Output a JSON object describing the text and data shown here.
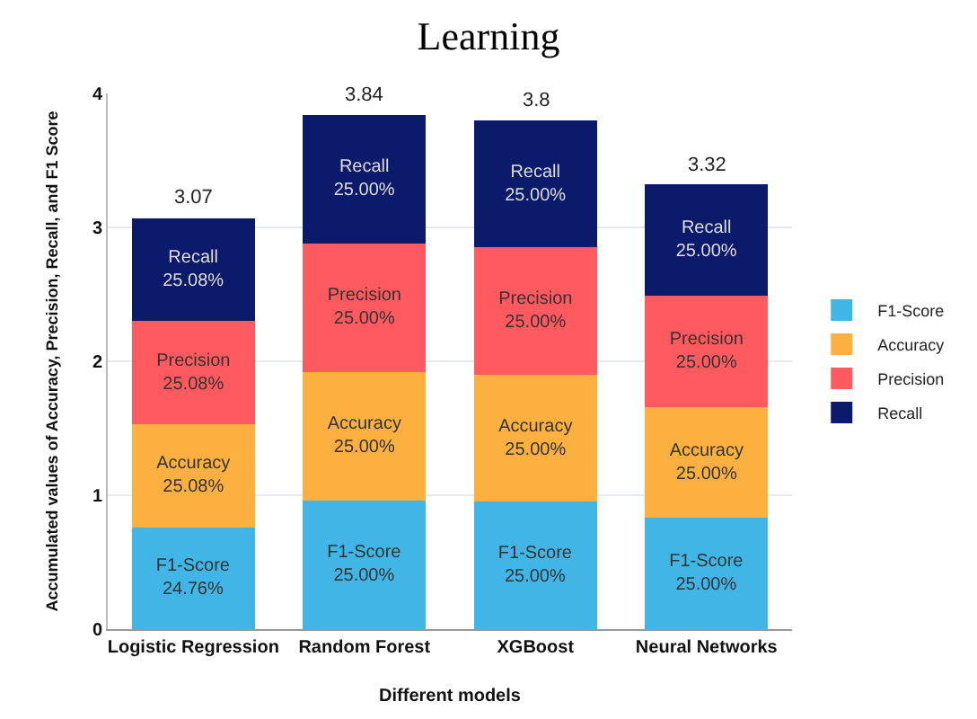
{
  "chart_data": {
    "type": "bar",
    "title": "Learning",
    "xlabel": "Different models",
    "ylabel": "Accumulated values of Accuracy, Precision, Recall, and F1 Score",
    "categories": [
      "Logistic Regression",
      "Random Forest",
      "XGBoost",
      "Neural Networks"
    ],
    "stacked": true,
    "ylim": [
      0,
      4
    ],
    "yticks": [
      0,
      1,
      2,
      3,
      4
    ],
    "grid": "y",
    "legend": "right",
    "series": [
      {
        "name": "F1-Score",
        "color": "#41b6e6",
        "values": [
          0.76,
          0.96,
          0.95,
          0.83
        ],
        "value_labels": [
          "F1-Score\n24.76%",
          "F1-Score\n25.00%",
          "F1-Score\n25.00%",
          "F1-Score\n25.00%"
        ]
      },
      {
        "name": "Accuracy",
        "color": "#fbb040",
        "values": [
          0.77,
          0.96,
          0.95,
          0.83
        ],
        "value_labels": [
          "Accuracy\n25.08%",
          "Accuracy\n25.00%",
          "Accuracy\n25.00%",
          "Accuracy\n25.00%"
        ]
      },
      {
        "name": "Precision",
        "color": "#ff5a5f",
        "values": [
          0.77,
          0.96,
          0.95,
          0.83
        ],
        "value_labels": [
          "Precision\n25.08%",
          "Precision\n25.00%",
          "Precision\n25.00%",
          "Precision\n25.00%"
        ]
      },
      {
        "name": "Recall",
        "color": "#0b1a6b",
        "values": [
          0.77,
          0.96,
          0.95,
          0.83
        ],
        "value_labels": [
          "Recall\n25.08%",
          "Recall\n25.00%",
          "Recall\n25.00%",
          "Recall\n25.00%"
        ]
      }
    ],
    "totals": [
      "3.07",
      "3.84",
      "3.8",
      "3.32"
    ]
  }
}
